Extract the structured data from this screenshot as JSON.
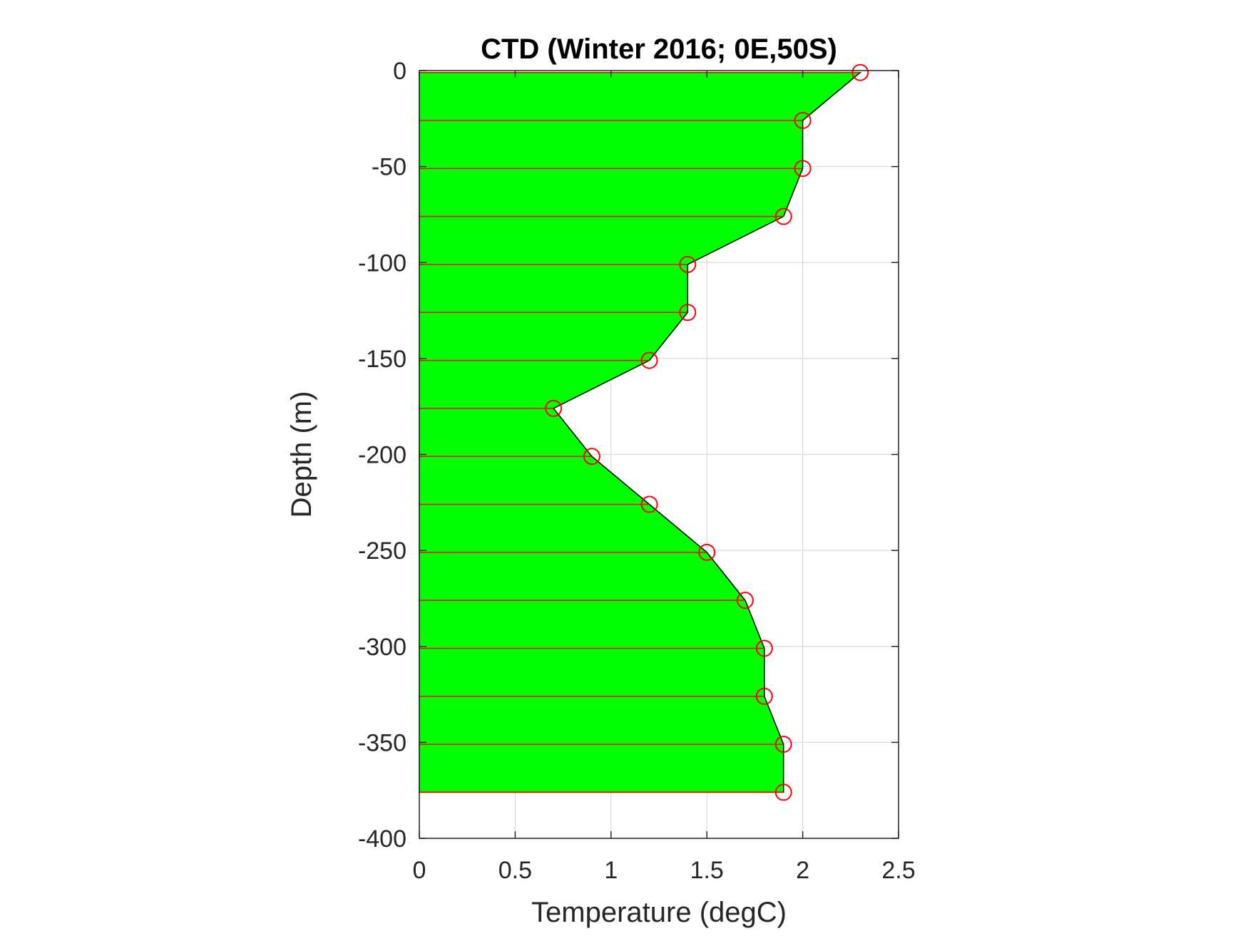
{
  "chart_data": {
    "type": "area",
    "title": "CTD (Winter 2016; 0E,50S)",
    "xlabel": "Temperature (degC)",
    "ylabel": "Depth (m)",
    "xlim": [
      0,
      2.5
    ],
    "ylim": [
      -400,
      0
    ],
    "xticks": [
      0,
      0.5,
      1,
      1.5,
      2,
      2.5
    ],
    "xtick_labels": [
      "0",
      "0.5",
      "1",
      "1.5",
      "2",
      "2.5"
    ],
    "yticks": [
      0,
      -50,
      -100,
      -150,
      -200,
      -250,
      -300,
      -350,
      -400
    ],
    "ytick_labels": [
      "0",
      "-50",
      "-100",
      "-150",
      "-200",
      "-250",
      "-300",
      "-350",
      "-400"
    ],
    "grid": true,
    "series": [
      {
        "temperature": [
          2.3,
          2.0,
          2.0,
          1.9,
          1.4,
          1.4,
          1.2,
          0.7,
          0.9,
          1.2,
          1.5,
          1.7,
          1.8,
          1.8,
          1.9,
          1.9
        ],
        "depth": [
          -1,
          -26,
          -51,
          -76,
          -101,
          -126,
          -151,
          -176,
          -201,
          -226,
          -251,
          -276,
          -301,
          -326,
          -351,
          -376
        ]
      }
    ],
    "colors": {
      "fill": "#00ff00",
      "outline": "#000000",
      "markers": "#ff0000",
      "grid": "#d9d9d9",
      "axes": "#262626"
    }
  }
}
